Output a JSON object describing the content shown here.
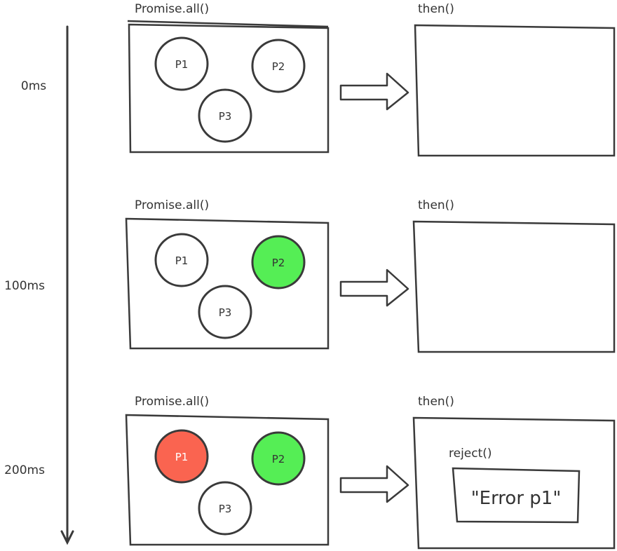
{
  "colors": {
    "stroke": "#3a3a3a",
    "fulfilled": "#55ee55",
    "rejected": "#fa6450",
    "pending": "#ffffff",
    "text": "#333333"
  },
  "stages": [
    {
      "time": "0ms",
      "left_title": "Promise.all()",
      "right_title": "then()",
      "promises": [
        {
          "label": "P1",
          "state": "pending"
        },
        {
          "label": "P2",
          "state": "pending"
        },
        {
          "label": "P3",
          "state": "pending"
        }
      ]
    },
    {
      "time": "100ms",
      "left_title": "Promise.all()",
      "right_title": "then()",
      "promises": [
        {
          "label": "P1",
          "state": "pending"
        },
        {
          "label": "P2",
          "state": "fulfilled"
        },
        {
          "label": "P3",
          "state": "pending"
        }
      ]
    },
    {
      "time": "200ms",
      "left_title": "Promise.all()",
      "right_title": "then()",
      "promises": [
        {
          "label": "P1",
          "state": "rejected"
        },
        {
          "label": "P2",
          "state": "fulfilled"
        },
        {
          "label": "P3",
          "state": "pending"
        }
      ],
      "reject_label": "reject()",
      "error_value": "\"Error p1\""
    }
  ]
}
